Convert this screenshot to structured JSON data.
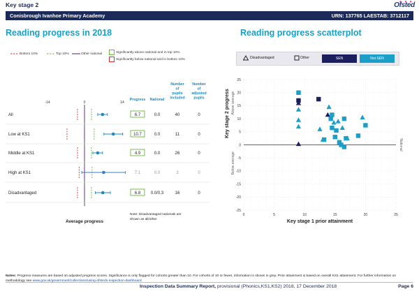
{
  "header": {
    "key_stage": "Key stage 2",
    "school": "Conisbrough Ivanhoe Primary Academy",
    "urn_text": "URN: 137765   LAESTAB: 3712117",
    "logo": "Ofsted"
  },
  "left": {
    "title": "Reading progress in 2018",
    "legend": {
      "bottom": "Bottom 10%",
      "top": "Top 10%",
      "national": "Other national",
      "sig_above": "Significantly above national and in top 10%",
      "sig_below": "Significantly below national and in bottom 10%"
    },
    "columns": {
      "progress": "Progress",
      "national": "National",
      "pupils": [
        "Number",
        "of",
        "pupils",
        "included"
      ],
      "adjusted": [
        "Number",
        "of",
        "adjusted",
        "pupils"
      ]
    },
    "axis_ticks": [
      "-14",
      "0",
      "14"
    ],
    "x_label": "Average progress",
    "note": [
      "Note: Disadvantaged nationals are",
      "shown as all/other"
    ],
    "rows": [
      {
        "label": "All",
        "progress": "6.7",
        "national": "0.0",
        "pupils": "40",
        "adjusted": "0",
        "boxed": true,
        "grey": false
      },
      {
        "label": "Low at KS1",
        "progress": "10.7",
        "national": "0.0",
        "pupils": "11",
        "adjusted": "0",
        "boxed": true,
        "grey": false
      },
      {
        "label": "Middle at KS1",
        "progress": "4.9",
        "national": "0.0",
        "pupils": "26",
        "adjusted": "0",
        "boxed": true,
        "grey": false
      },
      {
        "label": "High at KS1",
        "progress": "7.1",
        "national": "0.0",
        "pupils": "3",
        "adjusted": "0",
        "boxed": false,
        "grey": true
      },
      {
        "label": "Disadvantaged",
        "progress": "6.8",
        "national": "0.0/0.3",
        "pupils": "16",
        "adjusted": "0",
        "boxed": true,
        "grey": false
      }
    ]
  },
  "right": {
    "title": "Reading progress scatterplot",
    "legend": {
      "disadvantaged": "Disadvantaged",
      "other": "Other",
      "sen": "SEN",
      "not_sen": "Not SEN"
    }
  },
  "chart_data": [
    {
      "type": "dot-range",
      "categories": [
        "All",
        "Low at KS1",
        "Middle at KS1",
        "High at KS1",
        "Disadvantaged"
      ],
      "xlim": [
        -14,
        14
      ],
      "xlabel": "Average progress",
      "values": [
        6.7,
        10.7,
        4.9,
        7.1,
        6.8
      ],
      "ci_low": [
        4.9,
        7.2,
        3.1,
        -1.0,
        4.0
      ],
      "ci_high": [
        8.5,
        14.2,
        6.7,
        15.2,
        9.6
      ],
      "bottom10": [
        -2.6,
        -6.5,
        -2.6,
        -2.0,
        -2.6
      ],
      "top10": [
        2.6,
        3.6,
        2.6,
        2.8,
        2.6
      ],
      "national": [
        0.0,
        0.0,
        0.0,
        0.0,
        0.0
      ]
    },
    {
      "type": "scatter",
      "xlabel": "Key stage 1 prior attainment",
      "ylabel": "Key stage 2 progress",
      "side_labels": {
        "above": "Above average",
        "below": "Below average",
        "national": "National"
      },
      "xlim": [
        0,
        25
      ],
      "ylim": [
        -25,
        25
      ],
      "xticks": [
        0,
        5,
        10,
        15,
        20,
        25
      ],
      "yticks": [
        -25,
        -20,
        -15,
        -10,
        -5,
        0,
        5,
        10,
        15,
        20,
        25
      ],
      "colors": {
        "sen": "#1b1f5e",
        "not_sen": "#1b9fc8"
      },
      "points": [
        {
          "x": 9,
          "y": 20,
          "shape": "square",
          "group": "not_sen"
        },
        {
          "x": 9,
          "y": 17,
          "shape": "square",
          "group": "sen"
        },
        {
          "x": 9,
          "y": 16,
          "shape": "triangle",
          "group": "sen"
        },
        {
          "x": 9,
          "y": 13.5,
          "shape": "triangle",
          "group": "not_sen"
        },
        {
          "x": 9,
          "y": 9.5,
          "shape": "triangle",
          "group": "not_sen"
        },
        {
          "x": 9,
          "y": 7,
          "shape": "triangle",
          "group": "not_sen"
        },
        {
          "x": 9,
          "y": 0.3,
          "shape": "triangle",
          "group": "sen"
        },
        {
          "x": 12.3,
          "y": 17.5,
          "shape": "square",
          "group": "sen"
        },
        {
          "x": 12.5,
          "y": 6,
          "shape": "triangle",
          "group": "not_sen"
        },
        {
          "x": 13,
          "y": 2,
          "shape": "triangle",
          "group": "not_sen"
        },
        {
          "x": 13.2,
          "y": 2,
          "shape": "square",
          "group": "not_sen"
        },
        {
          "x": 13.8,
          "y": 11.5,
          "shape": "triangle",
          "group": "sen"
        },
        {
          "x": 14,
          "y": 14.5,
          "shape": "triangle",
          "group": "not_sen"
        },
        {
          "x": 14.3,
          "y": 10,
          "shape": "square",
          "group": "not_sen"
        },
        {
          "x": 14.5,
          "y": 11.5,
          "shape": "square",
          "group": "not_sen"
        },
        {
          "x": 14.5,
          "y": 6.5,
          "shape": "square",
          "group": "not_sen"
        },
        {
          "x": 14.8,
          "y": 8.5,
          "shape": "triangle",
          "group": "not_sen"
        },
        {
          "x": 15,
          "y": 3,
          "shape": "square",
          "group": "not_sen"
        },
        {
          "x": 15.2,
          "y": 5.5,
          "shape": "square",
          "group": "not_sen"
        },
        {
          "x": 15.5,
          "y": 9,
          "shape": "triangle",
          "group": "not_sen"
        },
        {
          "x": 15.7,
          "y": 1,
          "shape": "square",
          "group": "not_sen"
        },
        {
          "x": 16,
          "y": 0,
          "shape": "square",
          "group": "not_sen"
        },
        {
          "x": 16.2,
          "y": 6.5,
          "shape": "triangle",
          "group": "not_sen"
        },
        {
          "x": 16.5,
          "y": 10,
          "shape": "square",
          "group": "not_sen"
        },
        {
          "x": 16.5,
          "y": -0.8,
          "shape": "square",
          "group": "not_sen"
        },
        {
          "x": 16.8,
          "y": 2.5,
          "shape": "square",
          "group": "not_sen"
        },
        {
          "x": 17,
          "y": 2.5,
          "shape": "triangle",
          "group": "not_sen"
        },
        {
          "x": 18.8,
          "y": 3.5,
          "shape": "square",
          "group": "not_sen"
        },
        {
          "x": 19.5,
          "y": 10.5,
          "shape": "triangle",
          "group": "not_sen"
        },
        {
          "x": 20,
          "y": 7.5,
          "shape": "square",
          "group": "not_sen"
        }
      ]
    }
  ],
  "footer": {
    "notes_label": "Notes:",
    "notes_text": "Progress measures are based on adjusted progress scores. Significance is only flagged for cohorts greater than 10. For cohorts of 10 or fewer, information is shown in grey. Prior attainment is based on overall KS1 attainment. For further information on methodology see",
    "link": "www.gov.uk/government/collections/using-ofsteds-inspection-dashboard",
    "report": "Inspection Data Summary Report,",
    "provisional": "provisional (Phonics,KS1,KS2) 2018, 17 December 2018",
    "page": "Page 6"
  }
}
